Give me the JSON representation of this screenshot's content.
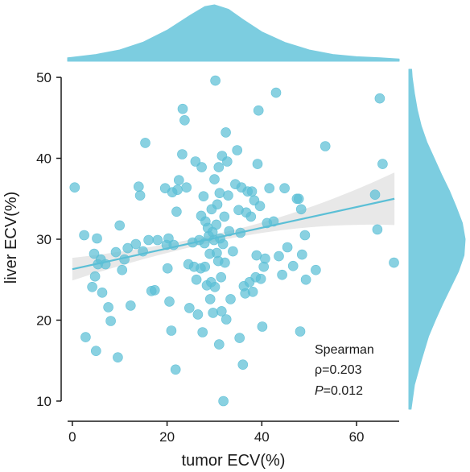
{
  "chart_data": {
    "type": "scatter",
    "xlabel": "tumor ECV(%)",
    "ylabel": "liver ECV(%)",
    "xlim": [
      -1,
      69
    ],
    "ylim": [
      9,
      51
    ],
    "x_ticks": [
      0,
      20,
      40,
      60
    ],
    "y_ticks": [
      10,
      20,
      30,
      40,
      50
    ],
    "grid": false,
    "colors": {
      "points": "#5bbfd6",
      "fit_line": "#5bbfd6",
      "ci_band": "#d9d9d9",
      "marginal": "#7ccde0",
      "axis": "#1a1a1a"
    },
    "annotation": {
      "line1": "Spearman",
      "line2": "ρ=0.203",
      "line3_italic": "P",
      "line3_rest": "=0.012"
    },
    "regression": {
      "x": [
        0,
        68
      ],
      "y": [
        26.3,
        35.0
      ],
      "ci_low_at_ends": [
        24.9,
        31.8
      ],
      "ci_high_at_ends": [
        27.7,
        38.3
      ]
    },
    "points": [
      {
        "x": 0.5,
        "y": 36.4
      },
      {
        "x": 2.5,
        "y": 30.5
      },
      {
        "x": 2.8,
        "y": 17.9
      },
      {
        "x": 4.2,
        "y": 24.1
      },
      {
        "x": 4.6,
        "y": 28.2
      },
      {
        "x": 4.8,
        "y": 25.4
      },
      {
        "x": 5.0,
        "y": 16.2
      },
      {
        "x": 5.2,
        "y": 30.1
      },
      {
        "x": 5.4,
        "y": 26.9
      },
      {
        "x": 6.0,
        "y": 27.5
      },
      {
        "x": 6.3,
        "y": 23.4
      },
      {
        "x": 7.0,
        "y": 26.9
      },
      {
        "x": 7.6,
        "y": 21.6
      },
      {
        "x": 8.1,
        "y": 19.9
      },
      {
        "x": 9.2,
        "y": 28.4
      },
      {
        "x": 9.6,
        "y": 15.4
      },
      {
        "x": 10.0,
        "y": 31.7
      },
      {
        "x": 10.5,
        "y": 26.2
      },
      {
        "x": 11.0,
        "y": 27.5
      },
      {
        "x": 11.7,
        "y": 28.9
      },
      {
        "x": 12.3,
        "y": 21.8
      },
      {
        "x": 13.4,
        "y": 29.4
      },
      {
        "x": 14.0,
        "y": 36.5
      },
      {
        "x": 14.3,
        "y": 35.4
      },
      {
        "x": 14.9,
        "y": 28.5
      },
      {
        "x": 15.4,
        "y": 41.9
      },
      {
        "x": 16.1,
        "y": 29.9
      },
      {
        "x": 16.7,
        "y": 23.6
      },
      {
        "x": 17.4,
        "y": 23.7
      },
      {
        "x": 18.0,
        "y": 29.9
      },
      {
        "x": 19.6,
        "y": 36.3
      },
      {
        "x": 19.9,
        "y": 29.3
      },
      {
        "x": 20.1,
        "y": 26.4
      },
      {
        "x": 20.3,
        "y": 30.1
      },
      {
        "x": 20.5,
        "y": 22.3
      },
      {
        "x": 20.9,
        "y": 18.7
      },
      {
        "x": 21.1,
        "y": 35.8
      },
      {
        "x": 21.4,
        "y": 29.3
      },
      {
        "x": 21.8,
        "y": 13.9
      },
      {
        "x": 22.0,
        "y": 33.4
      },
      {
        "x": 22.2,
        "y": 36.1
      },
      {
        "x": 22.5,
        "y": 37.3
      },
      {
        "x": 23.2,
        "y": 40.5
      },
      {
        "x": 23.3,
        "y": 46.1
      },
      {
        "x": 23.7,
        "y": 44.7
      },
      {
        "x": 24.1,
        "y": 36.4
      },
      {
        "x": 24.5,
        "y": 26.9
      },
      {
        "x": 24.7,
        "y": 21.5
      },
      {
        "x": 25.4,
        "y": 29.6
      },
      {
        "x": 25.7,
        "y": 26.6
      },
      {
        "x": 26.0,
        "y": 39.6
      },
      {
        "x": 26.2,
        "y": 25.0
      },
      {
        "x": 26.5,
        "y": 20.7
      },
      {
        "x": 26.8,
        "y": 29.9
      },
      {
        "x": 27.1,
        "y": 26.4
      },
      {
        "x": 27.2,
        "y": 32.9
      },
      {
        "x": 27.3,
        "y": 38.9
      },
      {
        "x": 27.5,
        "y": 18.5
      },
      {
        "x": 27.7,
        "y": 35.3
      },
      {
        "x": 27.9,
        "y": 29.5
      },
      {
        "x": 28.0,
        "y": 26.6
      },
      {
        "x": 28.1,
        "y": 32.2
      },
      {
        "x": 28.4,
        "y": 24.3
      },
      {
        "x": 28.6,
        "y": 31.4
      },
      {
        "x": 28.8,
        "y": 30.4
      },
      {
        "x": 29.0,
        "y": 28.2
      },
      {
        "x": 29.1,
        "y": 22.6
      },
      {
        "x": 29.3,
        "y": 24.7
      },
      {
        "x": 29.4,
        "y": 33.7
      },
      {
        "x": 29.6,
        "y": 30.9
      },
      {
        "x": 29.7,
        "y": 20.9
      },
      {
        "x": 29.9,
        "y": 29.9
      },
      {
        "x": 30.0,
        "y": 37.4
      },
      {
        "x": 30.1,
        "y": 24.1
      },
      {
        "x": 30.2,
        "y": 49.6
      },
      {
        "x": 30.4,
        "y": 31.8
      },
      {
        "x": 30.5,
        "y": 28.3
      },
      {
        "x": 30.6,
        "y": 34.3
      },
      {
        "x": 30.8,
        "y": 27.3
      },
      {
        "x": 30.9,
        "y": 38.9
      },
      {
        "x": 31.0,
        "y": 17.0
      },
      {
        "x": 31.1,
        "y": 35.7
      },
      {
        "x": 31.2,
        "y": 30.1
      },
      {
        "x": 31.4,
        "y": 25.3
      },
      {
        "x": 31.5,
        "y": 21.1
      },
      {
        "x": 31.6,
        "y": 40.3
      },
      {
        "x": 31.8,
        "y": 29.4
      },
      {
        "x": 31.9,
        "y": 10.0
      },
      {
        "x": 32.1,
        "y": 32.8
      },
      {
        "x": 32.2,
        "y": 27.1
      },
      {
        "x": 32.4,
        "y": 43.2
      },
      {
        "x": 32.5,
        "y": 20.1
      },
      {
        "x": 32.7,
        "y": 39.6
      },
      {
        "x": 32.9,
        "y": 35.4
      },
      {
        "x": 33.1,
        "y": 31.0
      },
      {
        "x": 33.4,
        "y": 22.6
      },
      {
        "x": 33.9,
        "y": 28.5
      },
      {
        "x": 34.4,
        "y": 36.8
      },
      {
        "x": 34.8,
        "y": 41.0
      },
      {
        "x": 35.1,
        "y": 33.6
      },
      {
        "x": 35.3,
        "y": 17.8
      },
      {
        "x": 35.5,
        "y": 30.8
      },
      {
        "x": 35.7,
        "y": 36.4
      },
      {
        "x": 36.0,
        "y": 14.5
      },
      {
        "x": 36.2,
        "y": 24.2
      },
      {
        "x": 36.5,
        "y": 23.3
      },
      {
        "x": 36.7,
        "y": 33.3
      },
      {
        "x": 37.0,
        "y": 35.9
      },
      {
        "x": 37.4,
        "y": 24.7
      },
      {
        "x": 37.7,
        "y": 32.8
      },
      {
        "x": 37.9,
        "y": 35.9
      },
      {
        "x": 38.1,
        "y": 23.5
      },
      {
        "x": 38.4,
        "y": 34.8
      },
      {
        "x": 38.7,
        "y": 25.3
      },
      {
        "x": 38.9,
        "y": 28.0
      },
      {
        "x": 39.1,
        "y": 39.3
      },
      {
        "x": 39.3,
        "y": 45.9
      },
      {
        "x": 39.6,
        "y": 34.1
      },
      {
        "x": 39.8,
        "y": 25.1
      },
      {
        "x": 40.1,
        "y": 19.2
      },
      {
        "x": 40.4,
        "y": 26.6
      },
      {
        "x": 40.7,
        "y": 27.6
      },
      {
        "x": 41.1,
        "y": 32.0
      },
      {
        "x": 41.6,
        "y": 36.3
      },
      {
        "x": 42.5,
        "y": 32.2
      },
      {
        "x": 43.0,
        "y": 48.1
      },
      {
        "x": 43.6,
        "y": 27.9
      },
      {
        "x": 44.3,
        "y": 25.6
      },
      {
        "x": 44.8,
        "y": 36.3
      },
      {
        "x": 45.4,
        "y": 29.0
      },
      {
        "x": 46.6,
        "y": 26.7
      },
      {
        "x": 47.4,
        "y": 35.0
      },
      {
        "x": 47.8,
        "y": 35.0
      },
      {
        "x": 48.1,
        "y": 18.6
      },
      {
        "x": 48.3,
        "y": 33.7
      },
      {
        "x": 48.5,
        "y": 28.1
      },
      {
        "x": 49.1,
        "y": 30.5
      },
      {
        "x": 49.3,
        "y": 25.0
      },
      {
        "x": 51.4,
        "y": 26.2
      },
      {
        "x": 53.4,
        "y": 41.5
      },
      {
        "x": 63.9,
        "y": 35.5
      },
      {
        "x": 64.4,
        "y": 31.2
      },
      {
        "x": 64.9,
        "y": 47.4
      },
      {
        "x": 65.5,
        "y": 39.3
      },
      {
        "x": 67.9,
        "y": 27.1
      }
    ],
    "marginal_x_density": {
      "x": [
        -1,
        0,
        5,
        10,
        15,
        20,
        25,
        28,
        30,
        33,
        36,
        40,
        45,
        50,
        55,
        60,
        65,
        69
      ],
      "density": [
        0.06,
        0.07,
        0.12,
        0.2,
        0.34,
        0.55,
        0.82,
        0.97,
        1.0,
        0.92,
        0.74,
        0.52,
        0.33,
        0.2,
        0.12,
        0.08,
        0.06,
        0.04
      ]
    },
    "marginal_y_density": {
      "y": [
        9,
        12,
        15,
        18,
        20,
        22,
        24,
        26,
        28,
        30,
        32,
        34,
        36,
        38,
        40,
        42,
        44,
        46,
        48,
        50,
        51
      ],
      "density": [
        0.04,
        0.1,
        0.22,
        0.35,
        0.47,
        0.6,
        0.74,
        0.88,
        0.98,
        1.0,
        0.95,
        0.84,
        0.72,
        0.58,
        0.45,
        0.32,
        0.22,
        0.15,
        0.1,
        0.06,
        0.05
      ]
    }
  }
}
